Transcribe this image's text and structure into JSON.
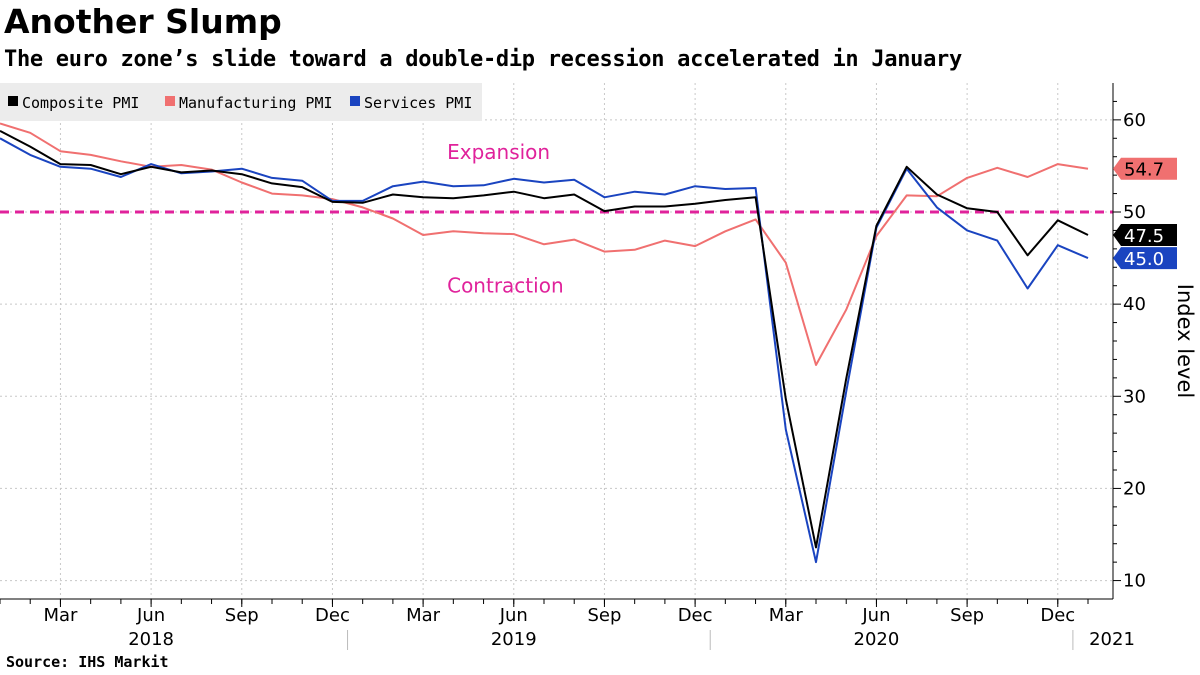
{
  "header": {
    "title": "Another Slump",
    "subtitle": "The euro zone’s slide toward a double-dip recession accelerated in January"
  },
  "footer": {
    "source": "Source: IHS Markit"
  },
  "chart_data": {
    "type": "line",
    "title": "Another Slump",
    "subtitle": "The euro zone’s slide toward a double-dip recession accelerated in January",
    "ylabel": "Index level",
    "ylim": [
      8,
      64
    ],
    "yticks": [
      10,
      20,
      30,
      40,
      50,
      60
    ],
    "y_axis_position": "right",
    "grid": true,
    "legend_position": "top-left",
    "x": [
      "2018-01",
      "2018-02",
      "2018-03",
      "2018-04",
      "2018-05",
      "2018-06",
      "2018-07",
      "2018-08",
      "2018-09",
      "2018-10",
      "2018-11",
      "2018-12",
      "2019-01",
      "2019-02",
      "2019-03",
      "2019-04",
      "2019-05",
      "2019-06",
      "2019-07",
      "2019-08",
      "2019-09",
      "2019-10",
      "2019-11",
      "2019-12",
      "2020-01",
      "2020-02",
      "2020-03",
      "2020-04",
      "2020-05",
      "2020-06",
      "2020-07",
      "2020-08",
      "2020-09",
      "2020-10",
      "2020-11",
      "2020-12",
      "2021-01"
    ],
    "x_ticks": [
      {
        "label": "Mar",
        "date": "2018-03"
      },
      {
        "label": "Jun",
        "date": "2018-06"
      },
      {
        "label": "Sep",
        "date": "2018-09"
      },
      {
        "label": "Dec",
        "date": "2018-12"
      },
      {
        "label": "Mar",
        "date": "2019-03"
      },
      {
        "label": "Jun",
        "date": "2019-06"
      },
      {
        "label": "Sep",
        "date": "2019-09"
      },
      {
        "label": "Dec",
        "date": "2019-12"
      },
      {
        "label": "Mar",
        "date": "2020-03"
      },
      {
        "label": "Jun",
        "date": "2020-06"
      },
      {
        "label": "Sep",
        "date": "2020-09"
      },
      {
        "label": "Dec",
        "date": "2020-12"
      }
    ],
    "year_labels": [
      {
        "label": "2018",
        "date": "2018-06"
      },
      {
        "label": "2019",
        "date": "2019-06"
      },
      {
        "label": "2020",
        "date": "2020-06"
      },
      {
        "label": "2021",
        "date": "2021-01"
      }
    ],
    "reference_line": {
      "y": 50,
      "color": "#e0229b"
    },
    "annotations": [
      {
        "text": "Expansion",
        "date": "2019-03",
        "y": 56.5
      },
      {
        "text": "Contraction",
        "date": "2019-03",
        "y": 42
      }
    ],
    "series": [
      {
        "name": "Composite PMI",
        "color": "#000000",
        "last_label": "47.5",
        "values": [
          58.8,
          57.1,
          55.2,
          55.1,
          54.1,
          54.9,
          54.3,
          54.5,
          54.1,
          53.1,
          52.7,
          51.1,
          51.0,
          51.9,
          51.6,
          51.5,
          51.8,
          52.2,
          51.5,
          51.9,
          50.1,
          50.6,
          50.6,
          50.9,
          51.3,
          51.6,
          29.7,
          13.6,
          31.9,
          48.5,
          54.9,
          51.9,
          50.4,
          50.0,
          45.3,
          49.1,
          47.5
        ]
      },
      {
        "name": "Manufacturing PMI",
        "color": "#f07070",
        "last_label": "54.7",
        "values": [
          59.6,
          58.6,
          56.6,
          56.2,
          55.5,
          54.9,
          55.1,
          54.6,
          53.2,
          52.0,
          51.8,
          51.4,
          50.5,
          49.3,
          47.5,
          47.9,
          47.7,
          47.6,
          46.5,
          47.0,
          45.7,
          45.9,
          46.9,
          46.3,
          47.9,
          49.2,
          44.5,
          33.4,
          39.4,
          47.4,
          51.8,
          51.7,
          53.7,
          54.8,
          53.8,
          55.2,
          54.7
        ]
      },
      {
        "name": "Services PMI",
        "color": "#1a44c0",
        "last_label": "45.0",
        "values": [
          58.0,
          56.2,
          54.9,
          54.7,
          53.8,
          55.2,
          54.2,
          54.4,
          54.7,
          53.7,
          53.4,
          51.2,
          51.2,
          52.8,
          53.3,
          52.8,
          52.9,
          53.6,
          53.2,
          53.5,
          51.6,
          52.2,
          51.9,
          52.8,
          52.5,
          52.6,
          26.4,
          12.0,
          30.5,
          48.3,
          54.7,
          50.5,
          48.0,
          46.9,
          41.7,
          46.4,
          45.0
        ]
      }
    ]
  }
}
